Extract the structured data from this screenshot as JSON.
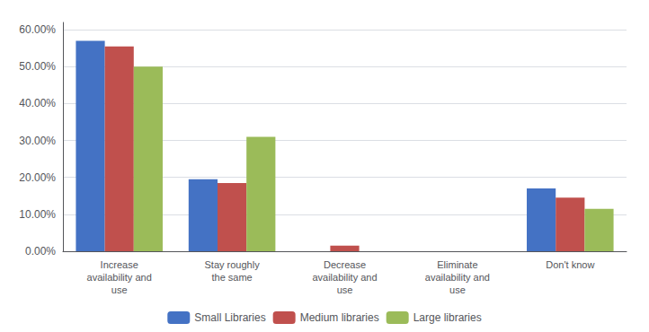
{
  "chart_data": {
    "type": "bar",
    "categories": [
      "Increase\navailability and\nuse",
      "Stay roughly\nthe same",
      "Decrease\navailability and\nuse",
      "Eliminate\navailability and\nuse",
      "Don't know"
    ],
    "series": [
      {
        "name": "Small Libraries",
        "color": "#4472C4",
        "values": [
          0.57,
          0.195,
          0.0,
          0.0,
          0.17
        ]
      },
      {
        "name": "Medium libraries",
        "color": "#C0504D",
        "values": [
          0.555,
          0.185,
          0.015,
          0.0,
          0.145
        ]
      },
      {
        "name": "Large libraries",
        "color": "#9BBB59",
        "values": [
          0.5,
          0.31,
          0.0,
          0.0,
          0.115
        ]
      }
    ],
    "ylim": [
      0,
      0.62
    ],
    "yticks": [
      {
        "value": 0.0,
        "label": "0.00%"
      },
      {
        "value": 0.1,
        "label": "10.00%"
      },
      {
        "value": 0.2,
        "label": "20.00%"
      },
      {
        "value": 0.3,
        "label": "30.00%"
      },
      {
        "value": 0.4,
        "label": "40.00%"
      },
      {
        "value": 0.5,
        "label": "50.00%"
      },
      {
        "value": 0.6,
        "label": "60.00%"
      }
    ],
    "grid": true,
    "legend": "bottom"
  }
}
